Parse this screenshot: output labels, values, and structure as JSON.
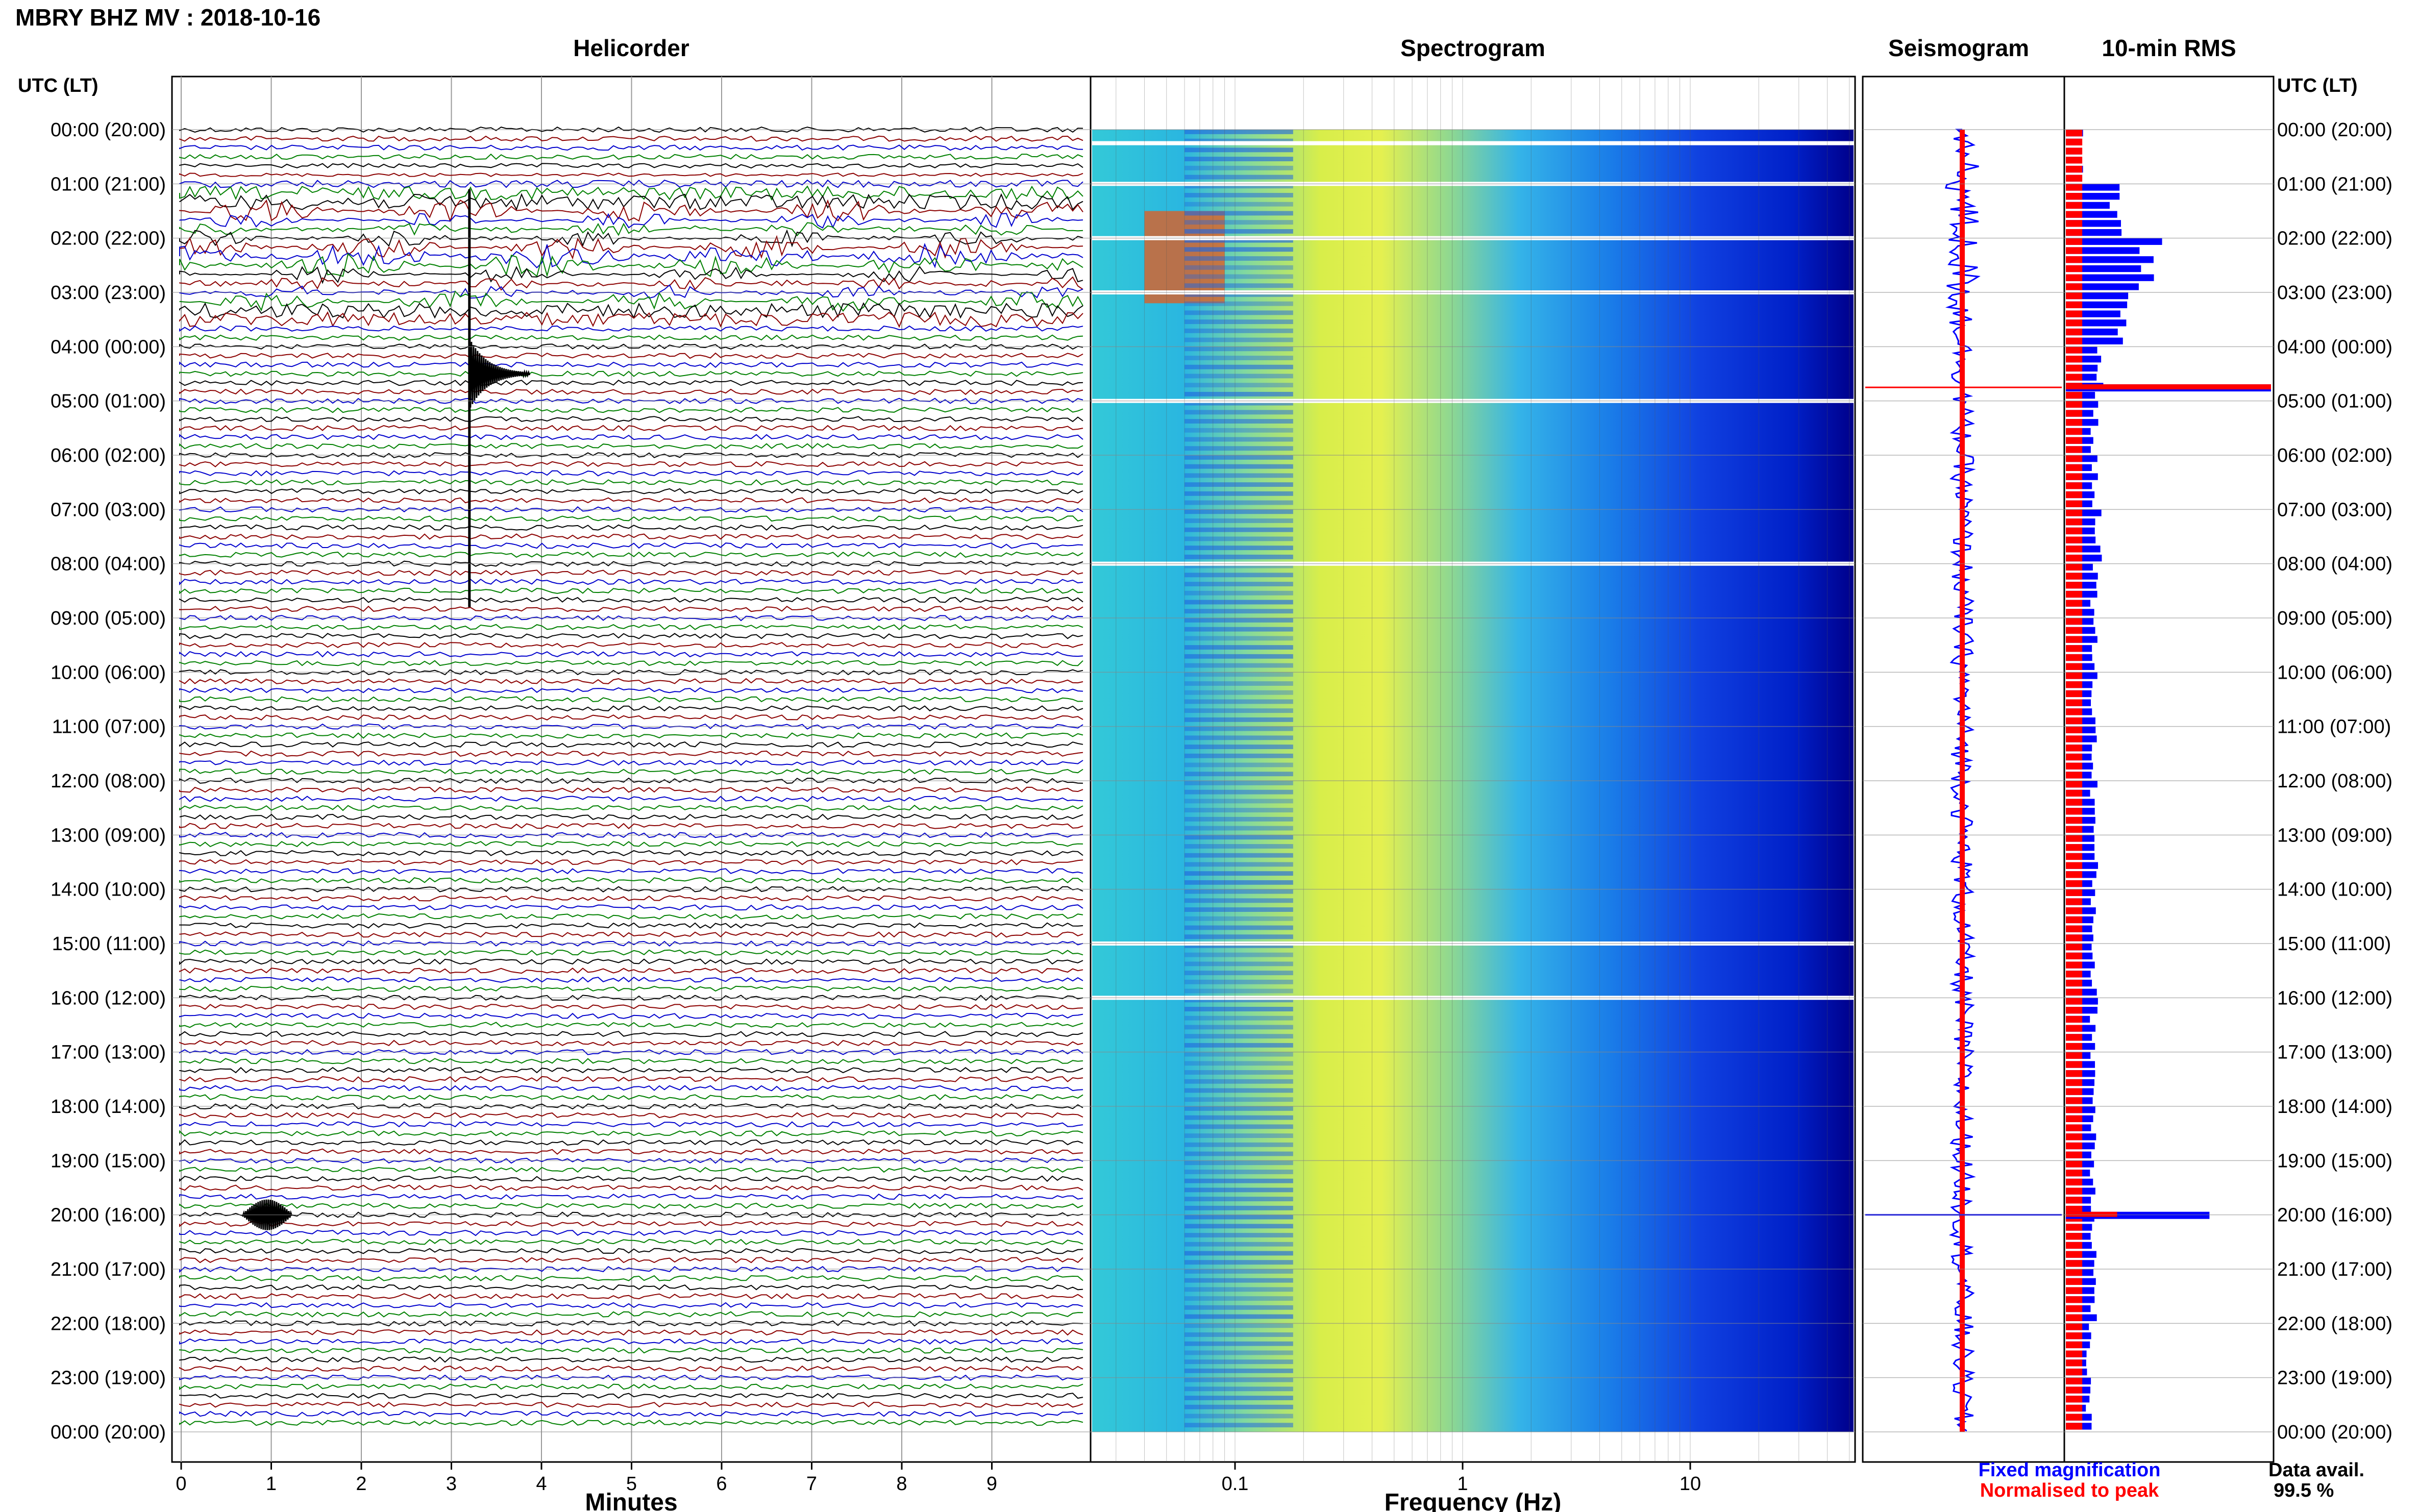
{
  "header": {
    "title": "MBRY BHZ MV : 2018-10-16",
    "utc_label_left": "UTC (LT)",
    "utc_label_right": "UTC (LT)"
  },
  "panels": {
    "helicorder": "Helicorder",
    "spectrogram": "Spectrogram",
    "seismogram": "Seismogram",
    "rms": "10-min RMS"
  },
  "footer": {
    "fixed_magnification": "Fixed magnification",
    "normalised_to_peak": "Normalised to peak",
    "data_avail_label": "Data avail.",
    "data_avail_value": "99.5 %"
  },
  "colors": {
    "trace_cycle": [
      "#000000",
      "#8b0000",
      "#0000cd",
      "#008000"
    ],
    "rms_fixed": "#0000ff",
    "rms_normalised": "#ff0000"
  },
  "chart_data": [
    {
      "type": "line",
      "panel": "Helicorder",
      "xlabel": "Minutes",
      "x_ticks": [
        "0",
        "1",
        "2",
        "3",
        "4",
        "5",
        "6",
        "7",
        "8",
        "9"
      ],
      "xlim": [
        0,
        10
      ],
      "y_ticks": [
        "00:00 (20:00)",
        "01:00 (21:00)",
        "02:00 (22:00)",
        "03:00 (23:00)",
        "04:00 (00:00)",
        "05:00 (01:00)",
        "06:00 (02:00)",
        "07:00 (03:00)",
        "08:00 (04:00)",
        "09:00 (05:00)",
        "10:00 (06:00)",
        "11:00 (07:00)",
        "12:00 (08:00)",
        "13:00 (09:00)",
        "14:00 (10:00)",
        "15:00 (11:00)",
        "16:00 (12:00)",
        "17:00 (13:00)",
        "18:00 (14:00)",
        "19:00 (15:00)",
        "20:00 (16:00)",
        "21:00 (17:00)",
        "22:00 (18:00)",
        "23:00 (19:00)",
        "00:00 (20:00)"
      ],
      "lines_per_hour": 6,
      "events": [
        {
          "time_utc": "04:30",
          "minute": 3.2,
          "note": "large event"
        },
        {
          "time_utc": "20:00",
          "minute": 0.9,
          "note": "event"
        }
      ]
    },
    {
      "type": "heatmap",
      "panel": "Spectrogram",
      "xlabel": "Frequency (Hz)",
      "x_scale": "log",
      "x_ticks": [
        "0.1",
        "1",
        "10"
      ],
      "xlim": [
        0.03,
        50
      ],
      "colormap": "jet",
      "data_gaps_utc": [
        "00:15",
        "01:00",
        "02:00",
        "03:00",
        "05:00",
        "08:00",
        "15:00",
        "16:00"
      ]
    },
    {
      "type": "line",
      "panel": "Seismogram",
      "events_utc": [
        "04:45",
        "20:00"
      ]
    },
    {
      "type": "bar",
      "panel": "10-min RMS",
      "orientation": "horizontal",
      "series": [
        {
          "name": "Fixed magnification",
          "color": "#0000ff"
        },
        {
          "name": "Normalised to peak",
          "color": "#ff0000"
        }
      ],
      "fixed_values_by_hour": [
        0.15,
        0.45,
        0.75,
        0.5,
        0.3,
        0.25,
        0.25,
        0.3,
        0.25,
        0.25,
        0.25,
        0.25,
        0.25,
        0.25,
        0.25,
        0.25,
        0.25,
        0.25,
        0.25,
        0.25,
        0.25,
        0.25,
        0.2,
        0.2
      ],
      "normalised_values_by_hour": [
        0.2,
        0.2,
        0.2,
        0.2,
        0.2,
        0.2,
        0.2,
        0.2,
        0.2,
        0.2,
        0.2,
        0.2,
        0.2,
        0.2,
        0.2,
        0.2,
        0.2,
        0.2,
        0.2,
        0.2,
        0.2,
        0.2,
        0.2,
        0.2
      ],
      "peaks": [
        {
          "time_utc": "04:45",
          "fixed": 1.0,
          "normalised": 1.0
        },
        {
          "time_utc": "20:00",
          "fixed": 0.7,
          "normalised": 0.25
        }
      ]
    }
  ]
}
